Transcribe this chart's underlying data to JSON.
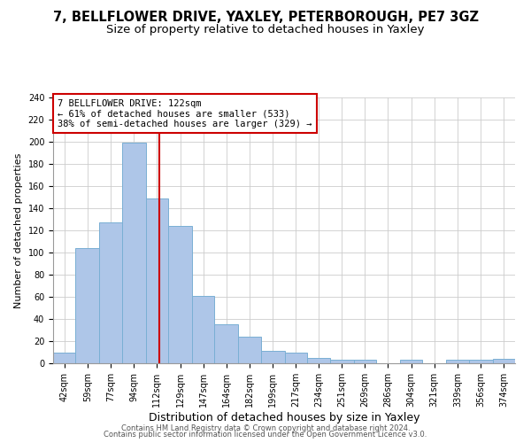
{
  "title": "7, BELLFLOWER DRIVE, YAXLEY, PETERBOROUGH, PE7 3GZ",
  "subtitle": "Size of property relative to detached houses in Yaxley",
  "xlabel": "Distribution of detached houses by size in Yaxley",
  "ylabel": "Number of detached properties",
  "bin_edges": [
    42,
    59,
    77,
    94,
    112,
    129,
    147,
    164,
    182,
    199,
    217,
    234,
    251,
    269,
    286,
    304,
    321,
    339,
    356,
    374,
    391
  ],
  "bar_heights": [
    10,
    104,
    127,
    199,
    149,
    124,
    61,
    35,
    24,
    11,
    10,
    5,
    3,
    3,
    0,
    3,
    0,
    3,
    3,
    4
  ],
  "bar_color": "#aec6e8",
  "bar_edge_color": "#7aafd4",
  "vline_x": 122,
  "vline_color": "#cc0000",
  "ylim": [
    0,
    240
  ],
  "yticks": [
    0,
    20,
    40,
    60,
    80,
    100,
    120,
    140,
    160,
    180,
    200,
    220,
    240
  ],
  "annotation_title": "7 BELLFLOWER DRIVE: 122sqm",
  "annotation_line1": "← 61% of detached houses are smaller (533)",
  "annotation_line2": "38% of semi-detached houses are larger (329) →",
  "annotation_box_color": "#ffffff",
  "annotation_border_color": "#cc0000",
  "footer1": "Contains HM Land Registry data © Crown copyright and database right 2024.",
  "footer2": "Contains public sector information licensed under the Open Government Licence v3.0.",
  "background_color": "#ffffff",
  "grid_color": "#cccccc",
  "title_fontsize": 10.5,
  "subtitle_fontsize": 9.5,
  "xlabel_fontsize": 9,
  "ylabel_fontsize": 8,
  "tick_fontsize": 7,
  "footer_fontsize": 6
}
